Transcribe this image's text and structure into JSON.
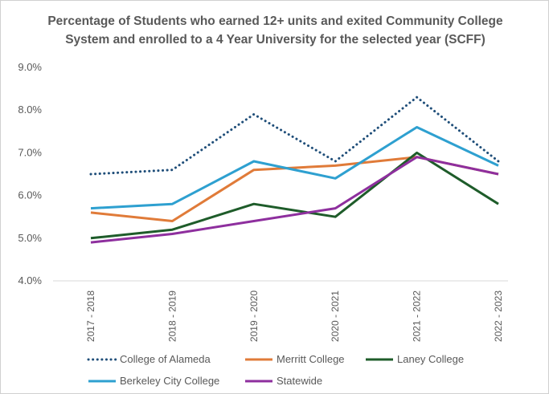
{
  "chart_data": {
    "type": "line",
    "title_line1": "Percentage of Students who earned 12+ units and exited Community College",
    "title_line2": "System and enrolled to a 4 Year University for the selected year (SCFF)",
    "categories": [
      "2017 - 2018",
      "2018 - 2019",
      "2019 - 2020",
      "2020 - 2021",
      "2021 - 2022",
      "2022 - 2023"
    ],
    "yticks": [
      "9.0%",
      "8.0%",
      "7.0%",
      "6.0%",
      "5.0%",
      "4.0%"
    ],
    "ylim": [
      4.0,
      9.0
    ],
    "grid": false,
    "legend_position": "bottom",
    "series": [
      {
        "name": "College of Alameda",
        "values": [
          6.5,
          6.6,
          7.9,
          6.8,
          8.3,
          6.8
        ],
        "color": "#1f4e79",
        "style": "dotted"
      },
      {
        "name": "Merritt College",
        "values": [
          5.6,
          5.4,
          6.6,
          6.7,
          6.9,
          6.5
        ],
        "color": "#e07b39",
        "style": "solid"
      },
      {
        "name": "Laney College",
        "values": [
          5.0,
          5.2,
          5.8,
          5.5,
          7.0,
          5.8
        ],
        "color": "#1e5c2a",
        "style": "solid"
      },
      {
        "name": "Berkeley City College",
        "values": [
          5.7,
          5.8,
          6.8,
          6.4,
          7.6,
          6.7
        ],
        "color": "#2ea0d0",
        "style": "solid"
      },
      {
        "name": "Statewide",
        "values": [
          4.9,
          5.1,
          5.4,
          5.7,
          6.9,
          6.5
        ],
        "color": "#8e2f9e",
        "style": "solid"
      }
    ]
  }
}
